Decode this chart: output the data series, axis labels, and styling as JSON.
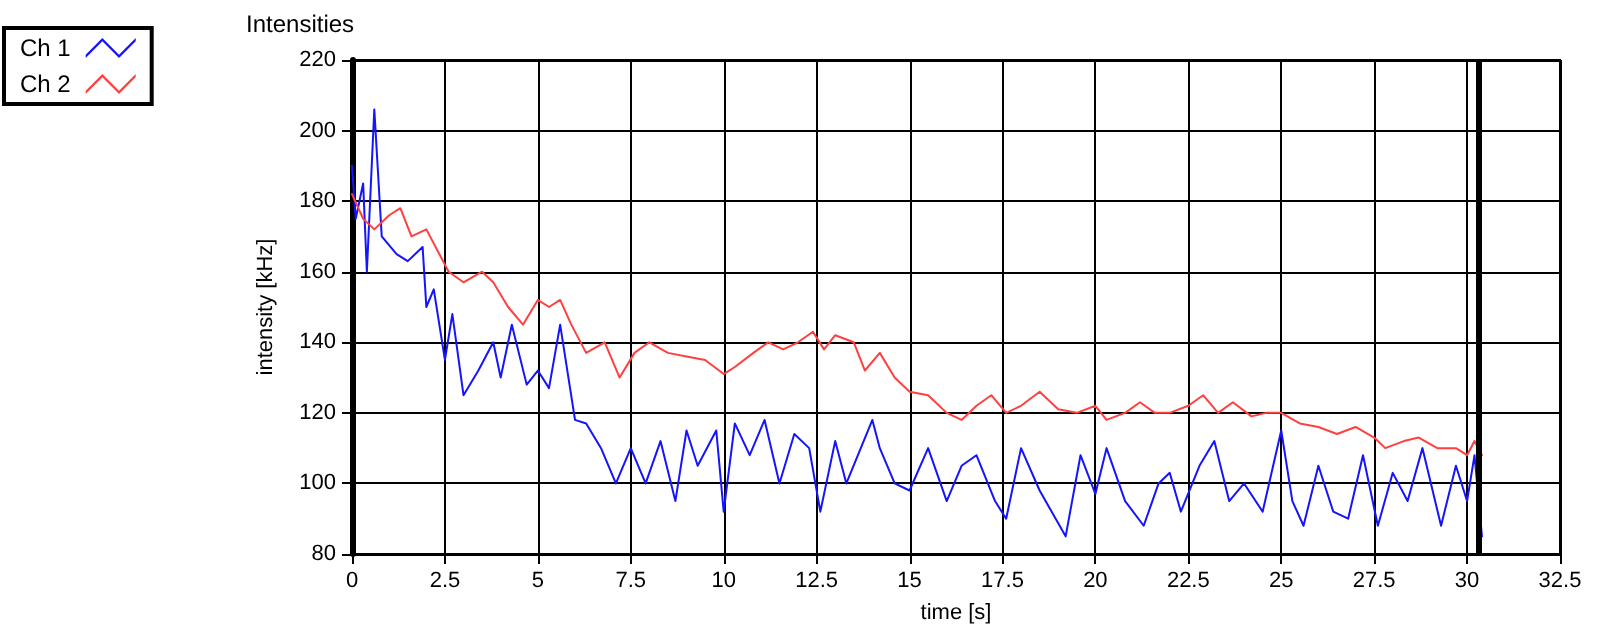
{
  "chart_data": {
    "type": "line",
    "title": "Intensities",
    "xlabel": "time [s]",
    "ylabel": "intensity [kHz]",
    "xlim": [
      0,
      32.5
    ],
    "xticks": [
      0,
      2.5,
      5,
      7.5,
      10,
      12.5,
      15,
      17.5,
      20,
      22.5,
      25,
      27.5,
      30,
      32.5
    ],
    "ylim": [
      80,
      220
    ],
    "yticks": [
      80,
      100,
      120,
      140,
      160,
      180,
      200,
      220
    ],
    "grid": true,
    "legend": "top left",
    "marker": "none",
    "line_style": "solid",
    "ref_lines": [
      {
        "axis": "x",
        "value": 30.3,
        "color": "#000000"
      }
    ],
    "series": [
      {
        "name": "Ch 1",
        "color": "#1414ff",
        "x": [
          0,
          0.1,
          0.3,
          0.4,
          0.6,
          0.8,
          1.2,
          1.5,
          1.9,
          2.0,
          2.2,
          2.5,
          2.7,
          3.0,
          3.4,
          3.8,
          4.0,
          4.3,
          4.7,
          5.0,
          5.3,
          5.6,
          6.0,
          6.3,
          6.7,
          7.1,
          7.5,
          7.9,
          8.3,
          8.7,
          9.0,
          9.3,
          9.8,
          10.0,
          10.3,
          10.7,
          11.1,
          11.5,
          11.9,
          12.3,
          12.6,
          13.0,
          13.3,
          14.0,
          14.2,
          14.6,
          15.0,
          15.5,
          16.0,
          16.4,
          16.8,
          17.3,
          17.6,
          18.0,
          18.5,
          19.2,
          19.6,
          20.0,
          20.3,
          20.8,
          21.3,
          21.7,
          22.0,
          22.3,
          22.8,
          23.2,
          23.6,
          24.0,
          24.5,
          25.0,
          25.3,
          25.6,
          26.0,
          26.4,
          26.8,
          27.2,
          27.6,
          28.0,
          28.4,
          28.8,
          29.3,
          29.7,
          30.0,
          30.2,
          30.4
        ],
        "values": [
          190,
          175,
          185,
          160,
          206,
          170,
          165,
          163,
          167,
          150,
          155,
          135,
          148,
          125,
          132,
          140,
          130,
          145,
          128,
          132,
          127,
          145,
          118,
          117,
          110,
          100,
          110,
          100,
          112,
          95,
          115,
          105,
          115,
          92,
          117,
          108,
          118,
          100,
          114,
          110,
          92,
          112,
          100,
          118,
          110,
          100,
          98,
          110,
          95,
          105,
          108,
          95,
          90,
          110,
          98,
          85,
          108,
          97,
          110,
          95,
          88,
          100,
          103,
          92,
          105,
          112,
          95,
          100,
          92,
          115,
          95,
          88,
          105,
          92,
          90,
          108,
          88,
          103,
          95,
          110,
          88,
          105,
          95,
          108,
          85
        ]
      },
      {
        "name": "Ch 2",
        "color": "#ff4040",
        "x": [
          0,
          0.3,
          0.6,
          1.0,
          1.3,
          1.6,
          2.0,
          2.3,
          2.6,
          3.0,
          3.5,
          3.8,
          4.2,
          4.6,
          5.0,
          5.3,
          5.6,
          5.9,
          6.3,
          6.8,
          7.2,
          7.6,
          8.0,
          8.5,
          9.0,
          9.5,
          10.0,
          10.3,
          10.8,
          11.2,
          11.6,
          12.0,
          12.4,
          12.7,
          13.0,
          13.5,
          13.8,
          14.2,
          14.6,
          15.0,
          15.5,
          16.0,
          16.4,
          16.8,
          17.2,
          17.6,
          18.0,
          18.5,
          19.0,
          19.5,
          20.0,
          20.3,
          20.8,
          21.2,
          21.6,
          22.0,
          22.5,
          22.9,
          23.3,
          23.7,
          24.2,
          24.6,
          25.0,
          25.5,
          26.0,
          26.5,
          27.0,
          27.5,
          27.8,
          28.3,
          28.7,
          29.2,
          29.7,
          30.0,
          30.2,
          30.4
        ],
        "values": [
          182,
          175,
          172,
          176,
          178,
          170,
          172,
          166,
          160,
          157,
          160,
          157,
          150,
          145,
          152,
          150,
          152,
          145,
          137,
          140,
          130,
          137,
          140,
          137,
          136,
          135,
          131,
          133,
          137,
          140,
          138,
          140,
          143,
          138,
          142,
          140,
          132,
          137,
          130,
          126,
          125,
          120,
          118,
          122,
          125,
          120,
          122,
          126,
          121,
          120,
          122,
          118,
          120,
          123,
          120,
          120,
          122,
          125,
          120,
          123,
          119,
          120,
          120,
          117,
          116,
          114,
          116,
          113,
          110,
          112,
          113,
          110,
          110,
          108,
          112,
          108
        ]
      }
    ]
  }
}
